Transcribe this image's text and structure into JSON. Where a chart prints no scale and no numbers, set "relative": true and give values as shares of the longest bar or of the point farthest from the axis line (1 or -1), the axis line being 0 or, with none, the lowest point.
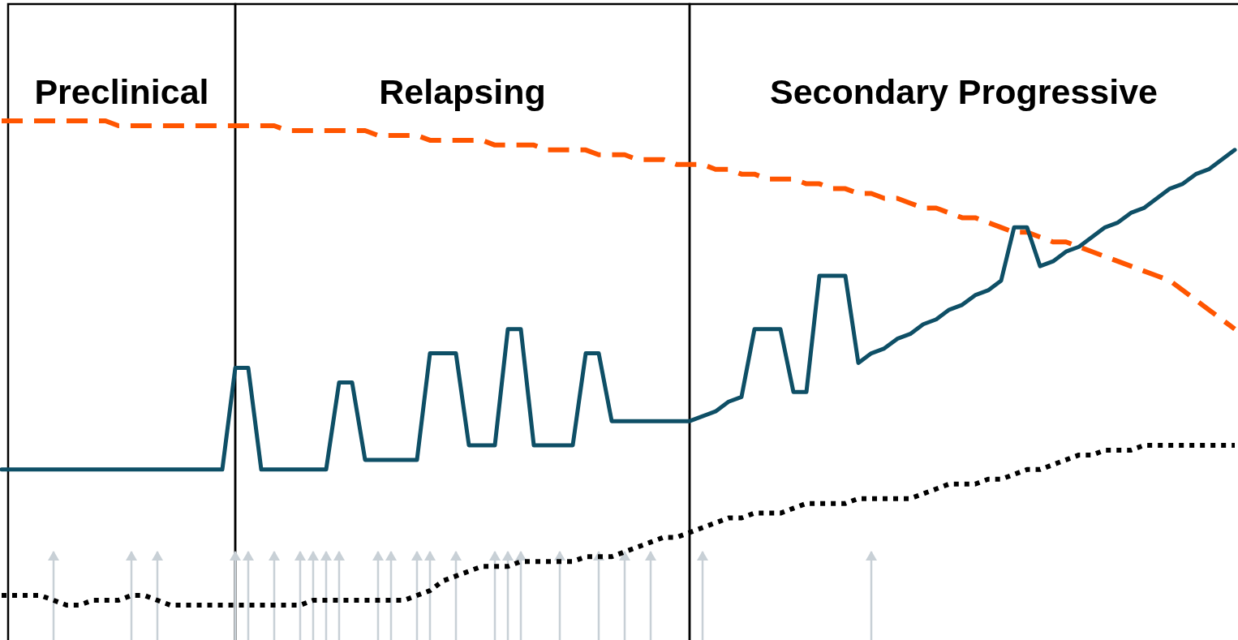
{
  "chart_data": [
    {
      "type": "line",
      "relative": true,
      "tick_labels": false,
      "categories": [
        null,
        null,
        null,
        null,
        null,
        null,
        null,
        null,
        null,
        null,
        null,
        null,
        null,
        null,
        null,
        null,
        null,
        null,
        null,
        null,
        null,
        null,
        null,
        null,
        null,
        null,
        null,
        null,
        null,
        null,
        null,
        null,
        null,
        null,
        null,
        null,
        null,
        null,
        null,
        null,
        null,
        null,
        null,
        null,
        null,
        null,
        null,
        null,
        null,
        null,
        null,
        null,
        null,
        null,
        null,
        null,
        null,
        null,
        null,
        null,
        null,
        null,
        null,
        null,
        null,
        null,
        null,
        null,
        null,
        null,
        null,
        null,
        null,
        null,
        null,
        null,
        null,
        null,
        null,
        null,
        null,
        null,
        null,
        null,
        null,
        null,
        null,
        null,
        null,
        null,
        null,
        null,
        null,
        null,
        null,
        null
      ],
      "series": [
        {
          "color": "#ff5500",
          "line_style": "dashed",
          "values": [
            1.0,
            1.0,
            1.0,
            1.0,
            1.0,
            1.0,
            1.0,
            1.0,
            1.0,
            0.99,
            0.99,
            0.99,
            0.99,
            0.99,
            0.99,
            0.99,
            0.99,
            0.99,
            0.99,
            0.99,
            0.99,
            0.99,
            0.98,
            0.98,
            0.98,
            0.98,
            0.98,
            0.98,
            0.98,
            0.97,
            0.97,
            0.97,
            0.97,
            0.96,
            0.96,
            0.96,
            0.96,
            0.96,
            0.95,
            0.95,
            0.95,
            0.95,
            0.94,
            0.94,
            0.94,
            0.94,
            0.93,
            0.93,
            0.93,
            0.92,
            0.92,
            0.92,
            0.91,
            0.91,
            0.91,
            0.9,
            0.9,
            0.89,
            0.89,
            0.88,
            0.88,
            0.88,
            0.87,
            0.87,
            0.86,
            0.86,
            0.85,
            0.85,
            0.84,
            0.84,
            0.83,
            0.82,
            0.82,
            0.81,
            0.8,
            0.8,
            0.79,
            0.78,
            0.77,
            0.77,
            0.76,
            0.75,
            0.75,
            0.74,
            0.73,
            0.72,
            0.71,
            0.7,
            0.69,
            0.68,
            0.67,
            0.65,
            0.63,
            0.61,
            0.59,
            0.57
          ]
        },
        {
          "color": "#0e4f66",
          "line_style": "solid",
          "values": [
            0.28,
            0.28,
            0.28,
            0.28,
            0.28,
            0.28,
            0.28,
            0.28,
            0.28,
            0.28,
            0.28,
            0.28,
            0.28,
            0.28,
            0.28,
            0.28,
            0.28,
            0.28,
            0.49,
            0.49,
            0.28,
            0.28,
            0.28,
            0.28,
            0.28,
            0.28,
            0.46,
            0.46,
            0.3,
            0.3,
            0.3,
            0.3,
            0.3,
            0.52,
            0.52,
            0.52,
            0.33,
            0.33,
            0.33,
            0.57,
            0.57,
            0.33,
            0.33,
            0.33,
            0.33,
            0.52,
            0.52,
            0.38,
            0.38,
            0.38,
            0.38,
            0.38,
            0.38,
            0.38,
            0.39,
            0.4,
            0.42,
            0.43,
            0.57,
            0.57,
            0.57,
            0.44,
            0.44,
            0.68,
            0.68,
            0.68,
            0.5,
            0.52,
            0.53,
            0.55,
            0.56,
            0.58,
            0.59,
            0.61,
            0.62,
            0.64,
            0.65,
            0.67,
            0.78,
            0.78,
            0.7,
            0.71,
            0.73,
            0.74,
            0.76,
            0.78,
            0.79,
            0.81,
            0.82,
            0.84,
            0.86,
            0.87,
            0.89,
            0.9,
            0.92,
            0.94
          ]
        },
        {
          "color": "#000000",
          "line_style": "dotted",
          "values": [
            0.02,
            0.02,
            0.02,
            0.02,
            0.01,
            0,
            0,
            0.01,
            0.01,
            0.01,
            0.02,
            0.02,
            0.01,
            0,
            0,
            0,
            0,
            0,
            0,
            0,
            0,
            0,
            0,
            0,
            0.01,
            0.01,
            0.01,
            0.01,
            0.01,
            0.01,
            0.01,
            0.01,
            0.02,
            0.03,
            0.05,
            0.06,
            0.07,
            0.08,
            0.08,
            0.08,
            0.09,
            0.09,
            0.09,
            0.09,
            0.09,
            0.1,
            0.1,
            0.1,
            0.11,
            0.12,
            0.13,
            0.14,
            0.14,
            0.15,
            0.16,
            0.17,
            0.18,
            0.18,
            0.19,
            0.19,
            0.19,
            0.2,
            0.21,
            0.21,
            0.21,
            0.21,
            0.22,
            0.22,
            0.22,
            0.22,
            0.22,
            0.23,
            0.24,
            0.25,
            0.25,
            0.25,
            0.26,
            0.26,
            0.27,
            0.28,
            0.28,
            0.29,
            0.3,
            0.31,
            0.31,
            0.32,
            0.32,
            0.32,
            0.33,
            0.33,
            0.33,
            0.33,
            0.33,
            0.33,
            0.33,
            0.33
          ]
        }
      ],
      "annotations": [
        "Preclinical",
        "Relapsing",
        "Secondary Progressive"
      ]
    },
    {
      "type": "bar",
      "relative": true,
      "tick_labels": false,
      "categories": [
        null,
        null,
        null,
        null,
        null,
        null,
        null,
        null,
        null,
        null,
        null,
        null,
        null,
        null,
        null,
        null,
        null,
        null,
        null,
        null,
        null,
        null,
        null,
        null,
        null,
        null,
        null,
        null,
        null,
        null,
        null,
        null,
        null,
        null,
        null,
        null,
        null,
        null,
        null,
        null,
        null,
        null,
        null,
        null,
        null,
        null,
        null,
        null,
        null,
        null,
        null,
        null,
        null,
        null,
        null,
        null,
        null,
        null,
        null,
        null,
        null,
        null,
        null,
        null,
        null,
        null,
        null,
        null,
        null,
        null,
        null,
        null,
        null,
        null,
        null,
        null,
        null,
        null,
        null,
        null,
        null,
        null,
        null,
        null,
        null,
        null,
        null,
        null,
        null,
        null,
        null,
        null,
        null,
        null,
        null,
        null
      ],
      "series": [
        {
          "color": "#c8d0d6",
          "values": [
            0,
            0,
            0,
            0,
            1,
            0,
            0,
            0,
            0,
            0,
            1,
            0,
            1,
            0,
            0,
            0,
            0,
            0,
            1,
            1,
            0,
            1,
            0,
            1,
            1,
            1,
            1,
            0,
            0,
            1,
            1,
            0,
            1,
            1,
            0,
            1,
            0,
            0,
            1,
            1,
            1,
            0,
            0,
            1,
            0,
            0,
            1,
            0,
            1,
            0,
            1,
            0,
            0,
            0,
            1,
            0,
            0,
            0,
            0,
            0,
            0,
            0,
            0,
            0,
            0,
            0,
            0,
            1,
            0,
            0,
            0,
            0,
            0,
            0,
            0,
            0,
            0,
            0,
            0,
            0,
            0,
            0,
            0,
            0,
            0,
            0,
            0,
            0,
            0,
            0,
            0,
            0,
            0,
            0,
            0,
            0
          ]
        }
      ]
    }
  ]
}
